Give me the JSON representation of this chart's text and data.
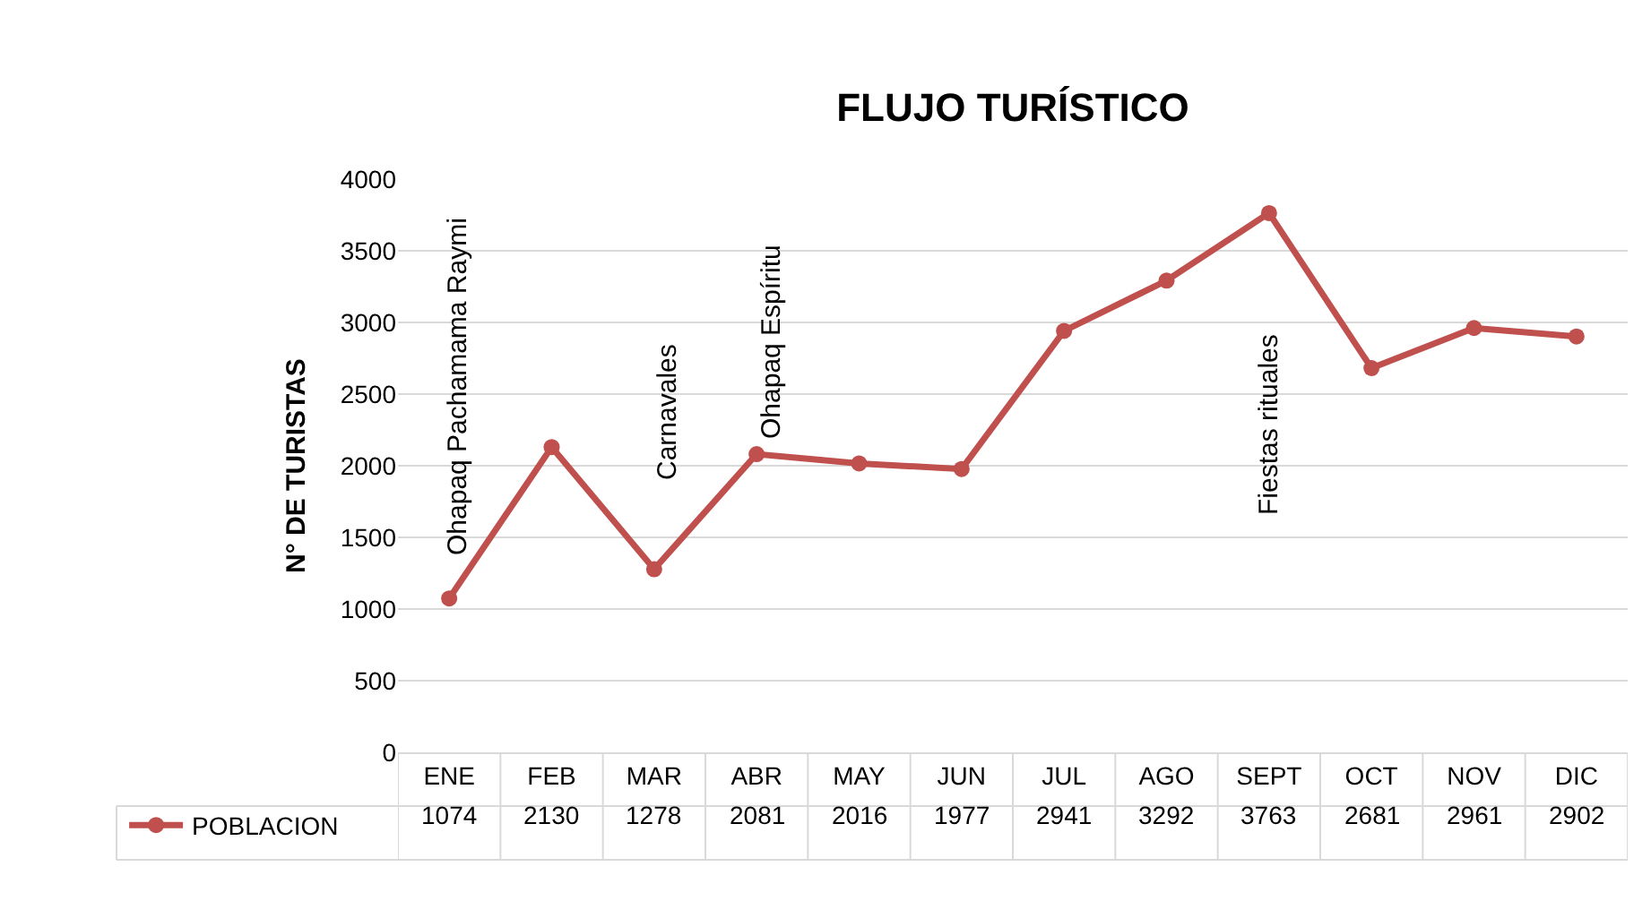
{
  "chart_data": {
    "type": "line",
    "title": "FLUJO TURÍSTICO",
    "ylabel": "N° DE TURISTAS",
    "categories": [
      "ENE",
      "FEB",
      "MAR",
      "ABR",
      "MAY",
      "JUN",
      "JUL",
      "AGO",
      "SEPT",
      "OCT",
      "NOV",
      "DIC"
    ],
    "series": [
      {
        "name": "POBLACION",
        "color": "#c0504d",
        "values": [
          1074,
          2130,
          1278,
          2081,
          2016,
          1977,
          2941,
          3292,
          3763,
          2681,
          2961,
          2902
        ]
      }
    ],
    "ylim": [
      0,
      4000
    ],
    "yticks": [
      0,
      500,
      1000,
      1500,
      2000,
      2500,
      3000,
      3500,
      4000
    ],
    "grid": "y",
    "legend": "bottom left",
    "marker": "circle",
    "line_style": "solid",
    "data_labels": true,
    "annotations": [
      "Ohapaq Pachamama Raymi",
      "Carnavales",
      "Ohapaq Espíritu",
      "Fiestas rituales"
    ]
  }
}
